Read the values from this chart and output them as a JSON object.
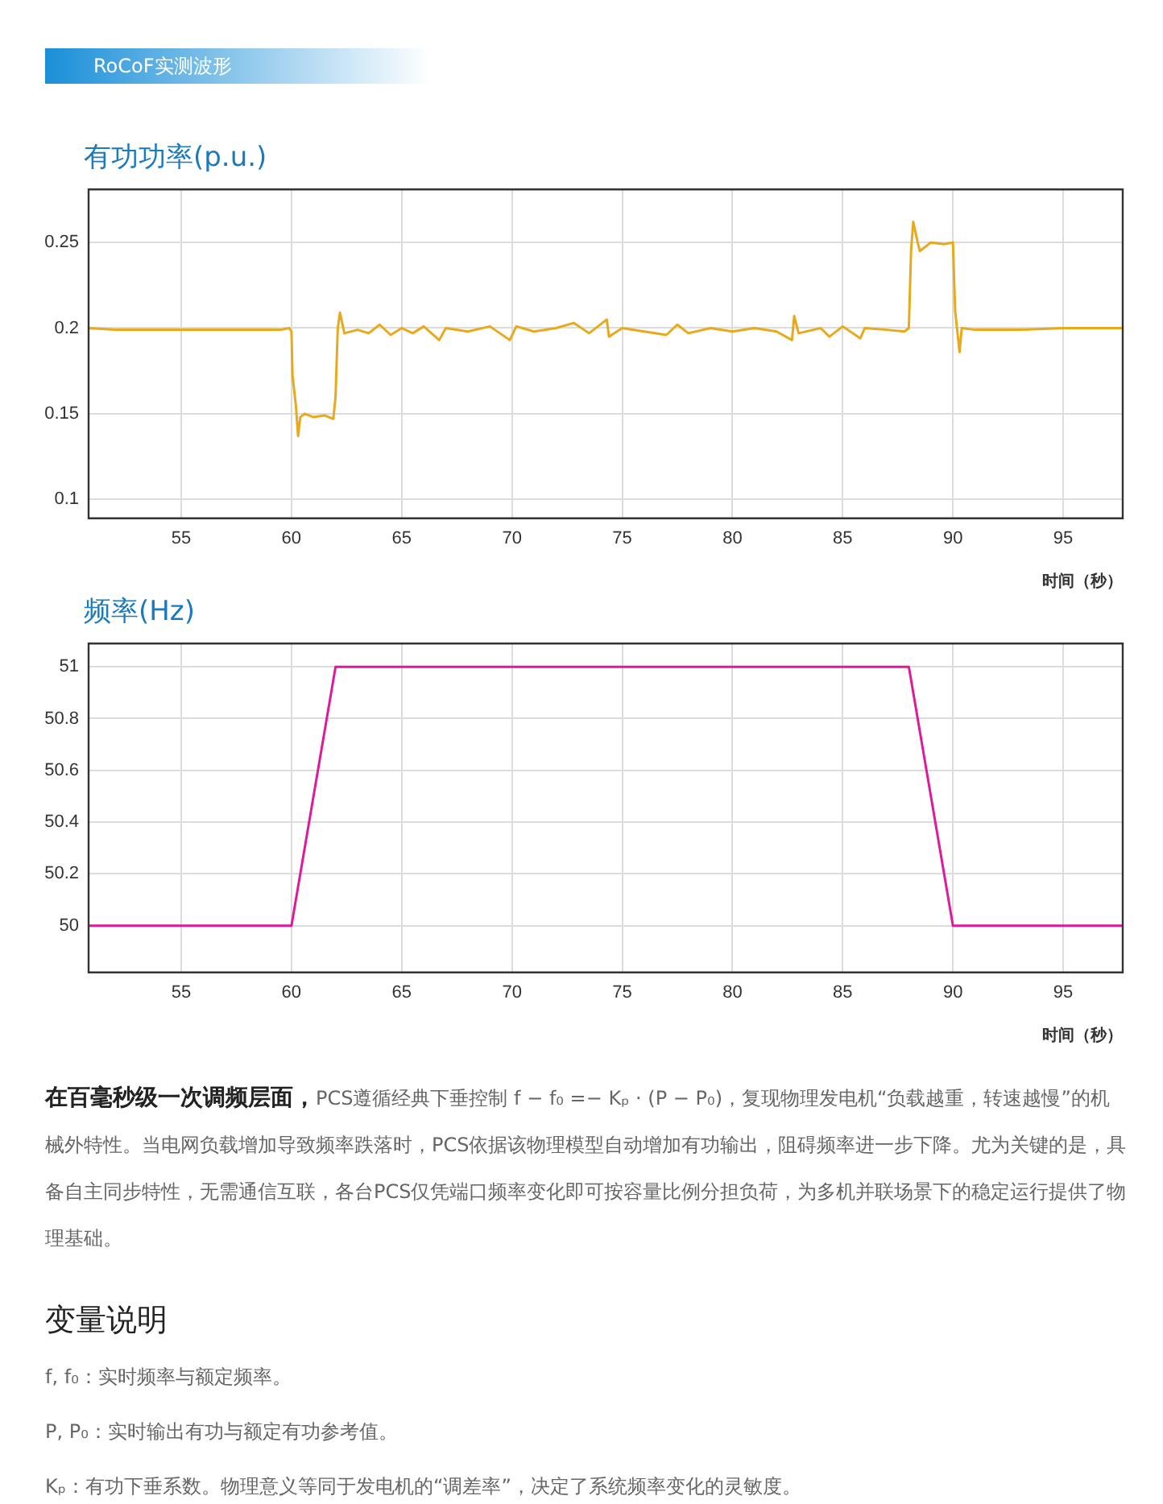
{
  "chart_data": [
    {
      "type": "line",
      "title": "有功功率(p.u.)",
      "xlabel": "时间（秒）",
      "annotations": [
        "RoCoF实测波形"
      ],
      "grid": true,
      "legend": false,
      "marker": "none",
      "line_style": "solid",
      "xlim": [
        50.8,
        97.7
      ],
      "xticks": [
        55,
        60,
        65,
        70,
        75,
        80,
        85,
        90,
        95
      ],
      "ylim": [
        0.089,
        0.281
      ],
      "yticks": [
        0.1,
        0.15,
        0.2,
        0.25
      ],
      "series": [
        {
          "color": "#e8aa1c",
          "x": [
            50.8,
            52,
            59.5,
            59.9,
            60.0,
            60.05,
            60.2,
            60.3,
            60.4,
            60.6,
            61,
            61.5,
            61.9,
            62.0,
            62.1,
            62.2,
            62.4,
            63,
            63.5,
            64,
            64.5,
            65,
            65.5,
            66,
            66.7,
            67,
            68,
            69,
            69.9,
            70.2,
            71,
            72,
            72.8,
            73.5,
            74.3,
            74.4,
            75,
            76,
            77,
            77.5,
            78,
            79,
            80,
            81,
            82,
            82.7,
            82.8,
            83,
            84,
            84.4,
            85,
            85.8,
            86,
            87,
            87.8,
            88.0,
            88.1,
            88.2,
            88.4,
            88.5,
            89,
            89.6,
            90.0,
            90.1,
            90.3,
            90.4,
            91,
            93,
            95,
            97.7
          ],
          "values": [
            0.2,
            0.199,
            0.199,
            0.2,
            0.198,
            0.172,
            0.155,
            0.137,
            0.148,
            0.15,
            0.148,
            0.149,
            0.147,
            0.16,
            0.2,
            0.209,
            0.197,
            0.199,
            0.197,
            0.202,
            0.196,
            0.2,
            0.197,
            0.201,
            0.193,
            0.2,
            0.198,
            0.201,
            0.193,
            0.201,
            0.198,
            0.2,
            0.203,
            0.197,
            0.205,
            0.195,
            0.2,
            0.198,
            0.196,
            0.202,
            0.197,
            0.2,
            0.198,
            0.2,
            0.198,
            0.193,
            0.207,
            0.197,
            0.2,
            0.195,
            0.201,
            0.194,
            0.2,
            0.199,
            0.198,
            0.2,
            0.245,
            0.262,
            0.25,
            0.245,
            0.25,
            0.249,
            0.25,
            0.21,
            0.186,
            0.2,
            0.199,
            0.199,
            0.2,
            0.2
          ]
        }
      ]
    },
    {
      "type": "line",
      "title": "频率(Hz)",
      "xlabel": "时间（秒）",
      "grid": true,
      "legend": false,
      "marker": "none",
      "line_style": "solid",
      "xlim": [
        50.8,
        97.7
      ],
      "xticks": [
        55,
        60,
        65,
        70,
        75,
        80,
        85,
        90,
        95
      ],
      "ylim": [
        49.82,
        51.09
      ],
      "yticks": [
        50,
        50.2,
        50.4,
        50.6,
        50.8,
        51
      ],
      "annotations": [
        "在百毫秒级一次调频层面，",
        "PCS遵循经典下垂控制 f − f₀ =− Kₚ · (P − P₀)，复现物理发电机“负载越重，转速越慢”的机械外特性。当电网负载增加导致频率跌落时，PCS依据该物理模型自动增加有功输出，阻碍频率进一步下降。尤为关键的是，具备自主同步特性，无需通信互联，各台PCS仅凭端口频率变化即可按容量比例分担负荷，为多机并联场景下的稳定运行提供了物理基础。",
        "变量说明",
        "f, f₀：实时频率与额定频率。",
        "P, P₀：实时输出有功与额定有功参考值。",
        "Kₚ：有功下垂系数。物理意义等同于发电机的“调差率”，决定了系统频率变化的灵敏度。"
      ],
      "series": [
        {
          "color": "#e0199a",
          "x": [
            50.8,
            60,
            62,
            88,
            90,
            97.7
          ],
          "values": [
            50,
            50,
            51,
            51,
            50,
            50
          ]
        }
      ]
    }
  ]
}
